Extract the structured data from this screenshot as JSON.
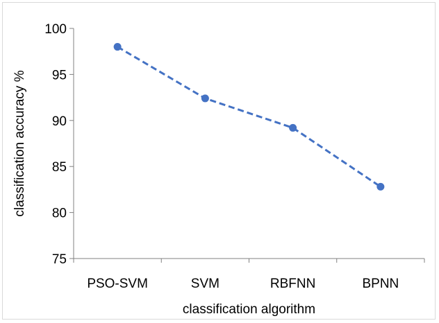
{
  "chart_data": {
    "type": "line",
    "categories": [
      "PSO-SVM",
      "SVM",
      "RBFNN",
      "BPNN"
    ],
    "series": [
      {
        "values": [
          98.0,
          92.4,
          89.2,
          82.8
        ],
        "color": "#4472c4",
        "line_style": "dashed",
        "marker": "circle"
      }
    ],
    "xlabel": "classification algorithm",
    "ylabel": "classification accuracy %",
    "ylim": [
      75,
      100
    ],
    "yticks": [
      "75",
      "80",
      "85",
      "90",
      "95",
      "100"
    ],
    "grid": false,
    "legend": "none"
  }
}
